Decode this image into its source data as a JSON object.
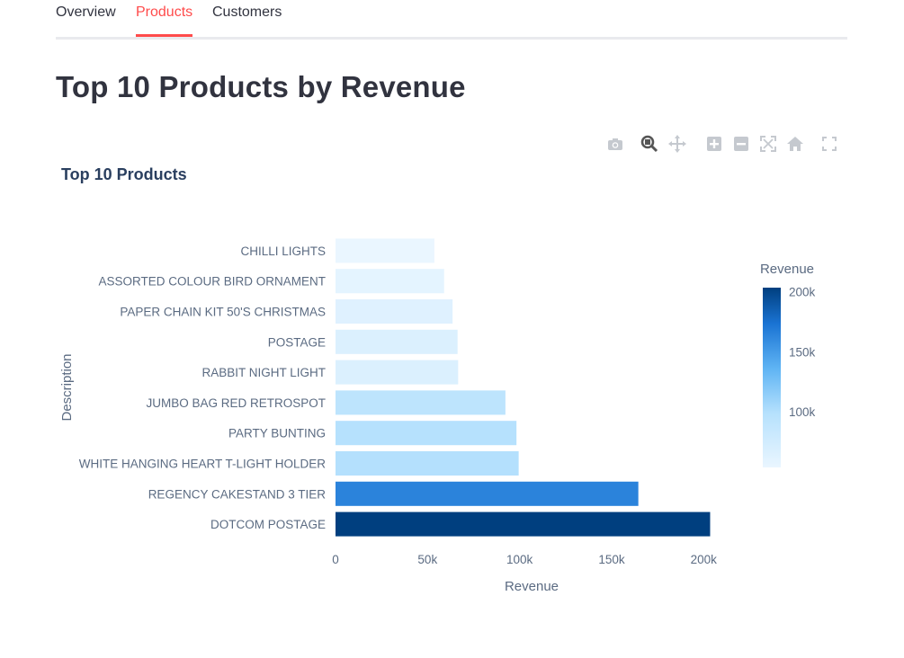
{
  "tabs": [
    {
      "label": "Overview",
      "active": false
    },
    {
      "label": "Products",
      "active": true
    },
    {
      "label": "Customers",
      "active": false
    }
  ],
  "page_title": "Top 10 Products by Revenue",
  "modebar": [
    "camera-icon",
    "zoom-icon",
    "pan-icon",
    "zoom-in-icon",
    "zoom-out-icon",
    "autoscale-icon",
    "reset-axes-icon",
    "fullscreen-icon"
  ],
  "colors": {
    "accent": "#ff4b4b",
    "bar_low": "#eaf6ff",
    "bar_high": "#003f7f"
  },
  "chart_data": {
    "type": "bar",
    "orientation": "horizontal",
    "title": "Top 10 Products",
    "xlabel": "Revenue",
    "ylabel": "Description",
    "xlim": [
      0,
      215000
    ],
    "x_ticks": [
      0,
      50000,
      100000,
      150000,
      200000
    ],
    "x_tick_labels": [
      "0",
      "50k",
      "100k",
      "150k",
      "200k"
    ],
    "categories": [
      "DOTCOM POSTAGE",
      "REGENCY CAKESTAND 3 TIER",
      "WHITE HANGING HEART T-LIGHT HOLDER",
      "PARTY BUNTING",
      "JUMBO BAG RED RETROSPOT",
      "RABBIT NIGHT LIGHT",
      "POSTAGE",
      "PAPER CHAIN KIT 50'S CHRISTMAS",
      "ASSORTED COLOUR BIRD ORNAMENT",
      "CHILLI LIGHTS"
    ],
    "values": [
      203500,
      164500,
      99500,
      98300,
      92300,
      66600,
      66300,
      63600,
      59000,
      53700
    ],
    "colorbar": {
      "title": "Revenue",
      "range": [
        53700,
        203500
      ],
      "ticks": [
        100000,
        150000,
        200000
      ],
      "tick_labels": [
        "100k",
        "150k",
        "200k"
      ]
    },
    "grid": false,
    "legend": "right"
  }
}
